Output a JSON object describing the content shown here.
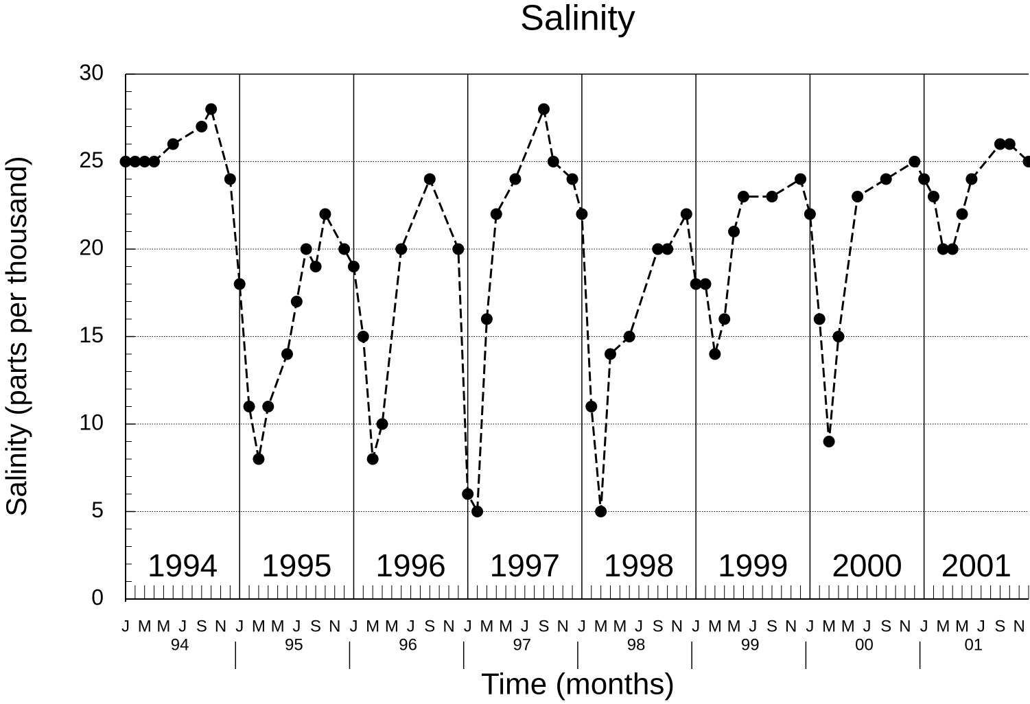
{
  "chart_data": {
    "type": "line",
    "title": "Salinity",
    "y_label": "Salinity (parts per thousand)",
    "x_label": "Time (months)",
    "color": "#000000",
    "grid": true,
    "ylim": [
      0,
      30
    ],
    "yticks": [
      0,
      5,
      10,
      15,
      20,
      25,
      30
    ],
    "xlim": [
      "1994-01",
      "2001-12"
    ],
    "x": [
      "1994-01",
      "1994-02",
      "1994-03",
      "1994-04",
      "1994-06",
      "1994-09",
      "1994-10",
      "1994-12",
      "1995-01",
      "1995-02",
      "1995-03",
      "1995-04",
      "1995-06",
      "1995-07",
      "1995-08",
      "1995-09",
      "1995-10",
      "1995-12",
      "1996-01",
      "1996-02",
      "1996-03",
      "1996-04",
      "1996-06",
      "1996-09",
      "1996-12",
      "1997-01",
      "1997-02",
      "1997-03",
      "1997-04",
      "1997-06",
      "1997-09",
      "1997-10",
      "1997-12",
      "1998-01",
      "1998-02",
      "1998-03",
      "1998-04",
      "1998-06",
      "1998-09",
      "1998-10",
      "1998-12",
      "1999-01",
      "1999-02",
      "1999-03",
      "1999-04",
      "1999-05",
      "1999-06",
      "1999-09",
      "1999-12",
      "2000-01",
      "2000-02",
      "2000-03",
      "2000-04",
      "2000-06",
      "2000-09",
      "2000-12",
      "2001-01",
      "2001-02",
      "2001-03",
      "2001-04",
      "2001-05",
      "2001-06",
      "2001-09",
      "2001-10",
      "2001-12"
    ],
    "values": [
      25,
      25,
      25,
      25,
      26,
      27,
      28,
      24,
      18,
      11,
      8,
      11,
      14,
      17,
      20,
      19,
      22,
      20,
      19,
      15,
      8,
      10,
      20,
      24,
      20,
      6,
      5,
      16,
      22,
      24,
      28,
      25,
      24,
      22,
      11,
      5,
      14,
      15,
      20,
      20,
      22,
      18,
      18,
      14,
      16,
      21,
      23,
      23,
      24,
      22,
      16,
      9,
      15,
      23,
      24,
      25,
      24,
      23,
      20,
      20,
      22,
      24,
      26,
      26,
      25
    ],
    "xticks": [
      {
        "value": "1994-01",
        "label": "J"
      },
      {
        "value": "1994-03",
        "label": "M"
      },
      {
        "value": "1994-05",
        "label": "M"
      },
      {
        "value": "1994-07",
        "label": "J"
      },
      {
        "value": "1994-09",
        "label": "S"
      },
      {
        "value": "1994-11",
        "label": "N"
      },
      {
        "value": "1995-01",
        "label": "J"
      },
      {
        "value": "1995-03",
        "label": "M"
      },
      {
        "value": "1995-05",
        "label": "M"
      },
      {
        "value": "1995-07",
        "label": "J"
      },
      {
        "value": "1995-09",
        "label": "S"
      },
      {
        "value": "1995-11",
        "label": "N"
      },
      {
        "value": "1996-01",
        "label": "J"
      },
      {
        "value": "1996-03",
        "label": "M"
      },
      {
        "value": "1996-05",
        "label": "M"
      },
      {
        "value": "1996-07",
        "label": "J"
      },
      {
        "value": "1996-09",
        "label": "S"
      },
      {
        "value": "1996-11",
        "label": "N"
      },
      {
        "value": "1997-01",
        "label": "J"
      },
      {
        "value": "1997-03",
        "label": "M"
      },
      {
        "value": "1997-05",
        "label": "M"
      },
      {
        "value": "1997-07",
        "label": "J"
      },
      {
        "value": "1997-09",
        "label": "S"
      },
      {
        "value": "1997-11",
        "label": "N"
      },
      {
        "value": "1998-01",
        "label": "J"
      },
      {
        "value": "1998-03",
        "label": "M"
      },
      {
        "value": "1998-05",
        "label": "M"
      },
      {
        "value": "1998-07",
        "label": "J"
      },
      {
        "value": "1998-09",
        "label": "S"
      },
      {
        "value": "1998-11",
        "label": "N"
      },
      {
        "value": "1999-01",
        "label": "J"
      },
      {
        "value": "1999-03",
        "label": "M"
      },
      {
        "value": "1999-05",
        "label": "M"
      },
      {
        "value": "1999-07",
        "label": "J"
      },
      {
        "value": "1999-09",
        "label": "S"
      },
      {
        "value": "1999-11",
        "label": "N"
      },
      {
        "value": "2000-01",
        "label": "J"
      },
      {
        "value": "2000-03",
        "label": "M"
      },
      {
        "value": "2000-05",
        "label": "M"
      },
      {
        "value": "2000-07",
        "label": "J"
      },
      {
        "value": "2000-09",
        "label": "S"
      },
      {
        "value": "2000-11",
        "label": "N"
      },
      {
        "value": "2001-01",
        "label": "J"
      },
      {
        "value": "2001-03",
        "label": "M"
      },
      {
        "value": "2001-05",
        "label": "M"
      },
      {
        "value": "2001-07",
        "label": "J"
      },
      {
        "value": "2001-09",
        "label": "S"
      },
      {
        "value": "2001-11",
        "label": "N"
      }
    ],
    "years": [
      {
        "start": "1994-01",
        "label": "1994",
        "short": "94"
      },
      {
        "start": "1995-01",
        "label": "1995",
        "short": "95"
      },
      {
        "start": "1996-01",
        "label": "1996",
        "short": "96"
      },
      {
        "start": "1997-01",
        "label": "1997",
        "short": "97"
      },
      {
        "start": "1998-01",
        "label": "1998",
        "short": "98"
      },
      {
        "start": "1999-01",
        "label": "1999",
        "short": "99"
      },
      {
        "start": "2000-01",
        "label": "2000",
        "short": "00"
      },
      {
        "start": "2001-01",
        "label": "2001",
        "short": "01"
      }
    ]
  }
}
